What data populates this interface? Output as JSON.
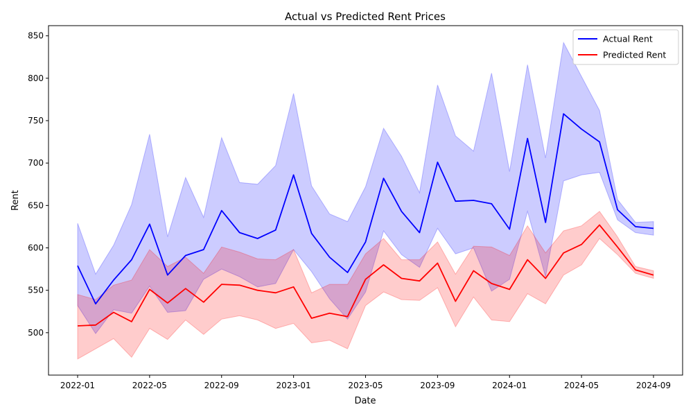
{
  "chart_data": {
    "type": "line",
    "title": "Actual vs Predicted Rent Prices",
    "xlabel": "Date",
    "ylabel": "Rent",
    "x": [
      "2022-01",
      "2022-02",
      "2022-03",
      "2022-04",
      "2022-05",
      "2022-06",
      "2022-07",
      "2022-08",
      "2022-09",
      "2022-10",
      "2022-11",
      "2022-12",
      "2023-01",
      "2023-02",
      "2023-03",
      "2023-04",
      "2023-05",
      "2023-06",
      "2023-07",
      "2023-08",
      "2023-09",
      "2023-10",
      "2023-11",
      "2023-12",
      "2024-01",
      "2024-02",
      "2024-03",
      "2024-04",
      "2024-05",
      "2024-06",
      "2024-07",
      "2024-08",
      "2024-09"
    ],
    "x_ticks": [
      "2022-01",
      "2022-05",
      "2022-09",
      "2023-01",
      "2023-05",
      "2023-09",
      "2024-01",
      "2024-05",
      "2024-09"
    ],
    "y_ticks": [
      500,
      550,
      600,
      650,
      700,
      750,
      800,
      850
    ],
    "ylim": [
      450,
      862
    ],
    "grid": false,
    "legend_position": "top-right",
    "series": [
      {
        "name": "Actual Rent",
        "color": "#0000ff",
        "band_color": "#0000ff",
        "values": [
          579,
          534,
          562,
          586,
          628,
          568,
          591,
          598,
          644,
          618,
          611,
          621,
          686,
          617,
          589,
          571,
          607,
          682,
          643,
          618,
          701,
          655,
          656,
          652,
          622,
          729,
          630,
          758,
          740,
          725,
          645,
          625,
          623
        ],
        "upper": [
          629,
          569,
          603,
          651,
          734,
          613,
          683,
          636,
          730,
          677,
          675,
          697,
          782,
          673,
          640,
          631,
          672,
          741,
          708,
          665,
          792,
          732,
          714,
          806,
          690,
          816,
          706,
          842,
          802,
          762,
          657,
          630,
          631
        ],
        "lower": [
          532,
          499,
          527,
          523,
          555,
          524,
          526,
          563,
          575,
          566,
          554,
          558,
          598,
          572,
          540,
          516,
          548,
          620,
          592,
          577,
          623,
          593,
          600,
          549,
          563,
          643,
          566,
          679,
          686,
          689,
          633,
          618,
          615
        ]
      },
      {
        "name": "Predicted Rent",
        "color": "#ff0000",
        "band_color": "#ff0000",
        "values": [
          508,
          509,
          524,
          513,
          551,
          535,
          552,
          536,
          557,
          556,
          550,
          547,
          554,
          517,
          523,
          519,
          563,
          580,
          564,
          561,
          582,
          537,
          573,
          558,
          551,
          586,
          564,
          594,
          604,
          627,
          601,
          574,
          568
        ],
        "upper": [
          545,
          539,
          556,
          562,
          598,
          578,
          589,
          570,
          601,
          595,
          587,
          586,
          598,
          547,
          557,
          557,
          593,
          611,
          586,
          586,
          607,
          569,
          602,
          601,
          591,
          626,
          594,
          620,
          626,
          643,
          613,
          578,
          573
        ],
        "lower": [
          469,
          481,
          493,
          471,
          505,
          492,
          515,
          498,
          516,
          520,
          515,
          505,
          511,
          488,
          491,
          481,
          532,
          548,
          539,
          538,
          553,
          507,
          542,
          515,
          513,
          546,
          534,
          568,
          580,
          611,
          592,
          570,
          564
        ]
      }
    ]
  }
}
